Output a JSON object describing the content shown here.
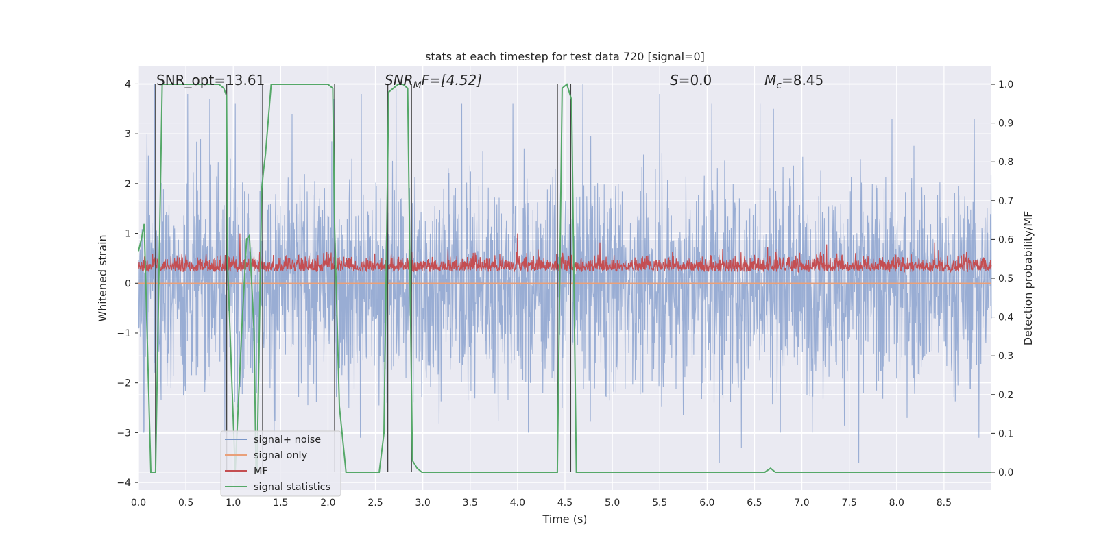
{
  "chart_data": {
    "type": "line",
    "title": "stats at each timestep for test data 720 [signal=0]",
    "xlabel": "Time (s)",
    "ylabel": "Whitened strain",
    "ylabel_right": "Detection probability/MF",
    "xlim": [
      0,
      9.0
    ],
    "ylim": [
      -4.15,
      4.35
    ],
    "ylim_right": [
      -0.046,
      1.046
    ],
    "x_ticks": [
      0.0,
      0.5,
      1.0,
      1.5,
      2.0,
      2.5,
      3.0,
      3.5,
      4.0,
      4.5,
      5.0,
      5.5,
      6.0,
      6.5,
      7.0,
      7.5,
      8.0,
      8.5
    ],
    "x_tick_labels": [
      "0.0",
      "0.5",
      "1.0",
      "1.5",
      "2.0",
      "2.5",
      "3.0",
      "3.5",
      "4.0",
      "4.5",
      "5.0",
      "5.5",
      "6.0",
      "6.5",
      "7.0",
      "7.5",
      "8.0",
      "8.5"
    ],
    "y_ticks": [
      4,
      3,
      2,
      1,
      0,
      -1,
      -2,
      -3,
      -4
    ],
    "y_tick_labels": [
      "4",
      "3",
      "2",
      "1",
      "0",
      "−1",
      "−2",
      "−3",
      "−4"
    ],
    "y_right_ticks": [
      1.0,
      0.9,
      0.8,
      0.7,
      0.6,
      0.5,
      0.4,
      0.3,
      0.2,
      0.1,
      0.0
    ],
    "y_right_tick_labels": [
      "1.0",
      "0.9",
      "0.8",
      "0.7",
      "0.6",
      "0.5",
      "0.4",
      "0.3",
      "0.2",
      "0.1",
      "0.0"
    ],
    "annotations": {
      "snr_opt": "SNR_opt=13.61",
      "snr_mf_math": "SNR",
      "snr_mf_sub": "M",
      "snr_mf_rest": "F=[4.52]",
      "s_math": "S",
      "s_rest": "=0.0",
      "mc_math": "M",
      "mc_sub": "c",
      "mc_rest": "=8.45"
    },
    "legend": [
      "signal+ noise",
      "signal only",
      "MF",
      "signal statistics"
    ],
    "legend_location": "lower-left",
    "colors": {
      "noise": "#7a96c8",
      "signal_only": "#e9a07a",
      "mf": "#c44e52",
      "stat": "#55a868",
      "vline": "#444444",
      "bg": "#eaeaf2",
      "grid": "#ffffff"
    },
    "noise_series": {
      "name": "signal+ noise",
      "description_range": [
        -3.7,
        4.0
      ],
      "peaks_high": [
        [
          0.09,
          3.0
        ],
        [
          0.17,
          4.0
        ],
        [
          0.52,
          3.8
        ],
        [
          0.75,
          3.7
        ],
        [
          0.93,
          3.2
        ],
        [
          1.02,
          3.6
        ],
        [
          1.29,
          4.0
        ],
        [
          1.62,
          3.4
        ],
        [
          2.06,
          3.7
        ],
        [
          2.35,
          3.8
        ],
        [
          2.72,
          3.9
        ],
        [
          3.41,
          3.6
        ],
        [
          3.95,
          3.6
        ],
        [
          4.69,
          4.0
        ],
        [
          5.5,
          3.8
        ],
        [
          6.05,
          3.6
        ],
        [
          6.56,
          3.6
        ],
        [
          6.7,
          3.5
        ],
        [
          7.95,
          3.3
        ],
        [
          8.82,
          3.3
        ]
      ],
      "peaks_low": [
        [
          0.06,
          -2.95
        ],
        [
          1.43,
          -3.55
        ],
        [
          2.34,
          -3.1
        ],
        [
          2.62,
          -2.4
        ],
        [
          6.13,
          -3.6
        ],
        [
          6.36,
          -3.3
        ],
        [
          7.6,
          -3.6
        ],
        [
          8.87,
          -3.1
        ]
      ]
    },
    "mf_series": {
      "name": "MF",
      "peaks": [
        [
          1.07,
          1.0
        ],
        [
          4.0,
          1.0
        ],
        [
          6.64,
          0.72
        ],
        [
          4.87,
          0.82
        ],
        [
          7.26,
          0.78
        ],
        [
          8.4,
          0.82
        ]
      ]
    },
    "signal_only_series": {
      "name": "signal only",
      "values_const": 0.0
    },
    "stat_series": {
      "name": "signal statistics",
      "x": [
        0.0,
        0.03,
        0.06,
        0.13,
        0.18,
        0.25,
        0.3,
        0.35,
        0.85,
        0.9,
        0.93,
        0.94,
        1.02,
        1.09,
        1.14,
        1.17,
        1.22,
        1.24,
        1.25,
        1.3,
        1.32,
        1.34,
        1.4,
        1.45,
        2.0,
        2.05,
        2.07,
        2.12,
        2.19,
        2.24,
        2.29,
        2.34,
        2.39,
        2.44,
        2.49,
        2.54,
        2.59,
        2.64,
        2.69,
        2.74,
        2.79,
        2.84,
        2.89,
        2.94,
        2.99,
        3.04,
        3.09,
        4.42,
        4.47,
        4.52,
        4.57,
        4.62,
        4.67,
        4.72,
        6.55,
        6.61,
        6.67,
        6.72,
        6.77,
        6.82,
        9.0
      ],
      "values": [
        0.57,
        0.6,
        0.64,
        0.0,
        0.0,
        1.0,
        1.0,
        1.0,
        1.0,
        0.99,
        0.97,
        0.54,
        0.0,
        0.37,
        0.6,
        0.61,
        0.36,
        0.0,
        0.0,
        0.73,
        0.78,
        0.82,
        1.0,
        1.0,
        1.0,
        0.99,
        0.63,
        0.17,
        0.0,
        0.0,
        0.0,
        0.0,
        0.0,
        0.0,
        0.0,
        0.0,
        0.1,
        0.98,
        0.99,
        1.0,
        1.0,
        0.99,
        0.03,
        0.01,
        0.0,
        0.0,
        0.0,
        0.0,
        0.99,
        1.0,
        0.96,
        0.0,
        0.0,
        0.0,
        0.0,
        0.0,
        0.01,
        0.0,
        0.0,
        0.0,
        0.0
      ]
    },
    "vertical_lines_x": [
      0.18,
      0.93,
      1.31,
      2.07,
      2.63,
      2.88,
      4.42,
      4.56
    ]
  }
}
